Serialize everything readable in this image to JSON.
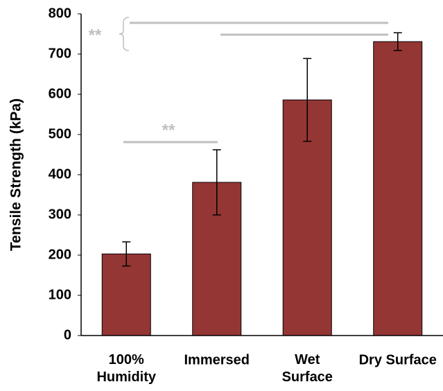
{
  "chart_data": {
    "type": "bar",
    "y_label": "Tensile Strength (kPa)",
    "categories": [
      "100%\nHumidity",
      "Immersed",
      "Wet\nSurface",
      "Dry Surface"
    ],
    "values": [
      203,
      381,
      586,
      731
    ],
    "errors": [
      30,
      81,
      103,
      22
    ],
    "color": "#943634",
    "ylim": [
      0,
      800
    ],
    "yticks": [
      0,
      100,
      200,
      300,
      400,
      500,
      600,
      700,
      800
    ],
    "grid": false,
    "annotations": [
      "**",
      "**"
    ]
  }
}
